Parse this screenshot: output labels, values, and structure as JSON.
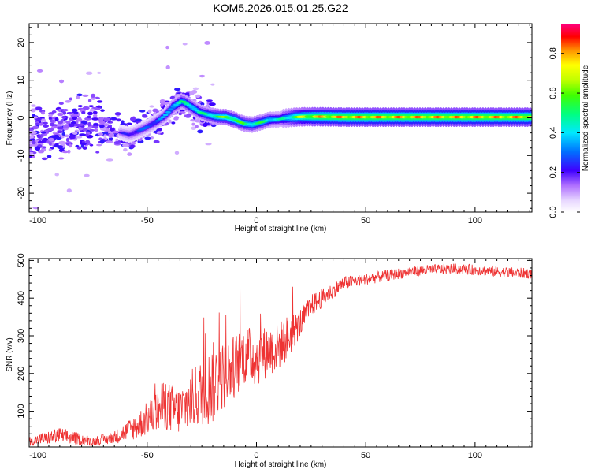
{
  "title": "KOM5.2026.015.01.25.G22",
  "chart_data": [
    {
      "type": "heatmap",
      "title": "KOM5.2026.015.01.25.G22",
      "xlabel": "Height of straight line (km)",
      "ylabel": "Frequency (Hz)",
      "xlim": [
        -104,
        126
      ],
      "ylim": [
        -25,
        25
      ],
      "xticks": [
        -100,
        -50,
        0,
        50,
        100
      ],
      "yticks": [
        -20,
        -10,
        0,
        10,
        20
      ],
      "colorbar": {
        "label": "Normalized spectral amplitude",
        "range": [
          0,
          0.95
        ],
        "ticks": [
          0.0,
          0.2,
          0.4,
          0.6,
          0.8
        ]
      },
      "ridge": {
        "x": [
          -104,
          -95,
          -85,
          -75,
          -65,
          -58,
          -52,
          -47,
          -42,
          -38,
          -34,
          -30,
          -26,
          -22,
          -18,
          -14,
          -10,
          -6,
          -2,
          2,
          6,
          10,
          14,
          18,
          22,
          26,
          30,
          40,
          50,
          60,
          70,
          80,
          90,
          100,
          110,
          126
        ],
        "y": [
          -6,
          -4,
          -2.5,
          -2,
          -3.5,
          -4.5,
          -3,
          -1.5,
          0.5,
          3,
          4.5,
          3,
          1.5,
          0.8,
          0.3,
          0.2,
          -0.5,
          -1.5,
          -1.8,
          -1.2,
          -0.5,
          -0.4,
          0,
          0.2,
          0.3,
          0.3,
          0.3,
          0.2,
          0.2,
          0.2,
          0.2,
          0.2,
          0.2,
          0.2,
          0.2,
          0.2
        ],
        "amplitude": [
          0.1,
          0.12,
          0.14,
          0.15,
          0.2,
          0.28,
          0.32,
          0.35,
          0.4,
          0.5,
          0.55,
          0.55,
          0.52,
          0.58,
          0.65,
          0.7,
          0.7,
          0.62,
          0.6,
          0.6,
          0.55,
          0.5,
          0.55,
          0.7,
          0.8,
          0.85,
          0.88,
          0.9,
          0.9,
          0.9,
          0.9,
          0.9,
          0.9,
          0.9,
          0.9,
          0.9
        ]
      }
    },
    {
      "type": "line",
      "xlabel": "Height of straight line (km)",
      "ylabel": "SNR (v/v)",
      "xlim": [
        -104,
        126
      ],
      "ylim": [
        5,
        505
      ],
      "xticks": [
        -100,
        -50,
        0,
        50,
        100
      ],
      "yticks": [
        100,
        200,
        300,
        400,
        500
      ],
      "line_color": "#ee3333",
      "series": [
        {
          "name": "SNR",
          "envelope": {
            "x": [
              -104,
              -95,
              -90,
              -80,
              -75,
              -65,
              -60,
              -55,
              -50,
              -45,
              -42,
              -40,
              -35,
              -30,
              -25,
              -22,
              -20,
              -15,
              -10,
              -5,
              0,
              5,
              10,
              15,
              18,
              22,
              25,
              30,
              35,
              40,
              50,
              60,
              70,
              80,
              90,
              100,
              110,
              126
            ],
            "mean": [
              20,
              30,
              35,
              25,
              20,
              30,
              45,
              60,
              80,
              100,
              120,
              110,
              100,
              130,
              150,
              160,
              175,
              195,
              220,
              250,
              240,
              260,
              270,
              300,
              320,
              350,
              380,
              400,
              420,
              440,
              450,
              460,
              470,
              475,
              478,
              475,
              470,
              465
            ],
            "spread": [
              12,
              18,
              22,
              15,
              12,
              18,
              25,
              35,
              45,
              55,
              70,
              65,
              65,
              80,
              90,
              100,
              110,
              90,
              85,
              80,
              75,
              70,
              65,
              60,
              45,
              35,
              30,
              25,
              20,
              18,
              15,
              15,
              14,
              14,
              14,
              14,
              14,
              14
            ]
          }
        }
      ]
    }
  ]
}
